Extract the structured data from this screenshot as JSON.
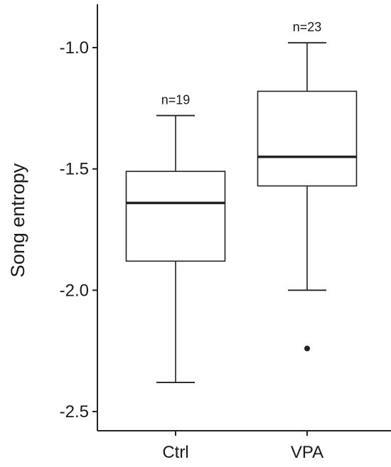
{
  "chart_data": {
    "type": "boxplot",
    "title": "",
    "xlabel": "",
    "ylabel": "Song entropy",
    "ylim": [
      -2.6,
      -0.82
    ],
    "yticks": [
      -1.0,
      -1.5,
      -2.0,
      -2.5
    ],
    "ytick_labels": [
      "-1.0",
      "-1.5",
      "-2.0",
      "-2.5"
    ],
    "categories": [
      "Ctrl",
      "VPA"
    ],
    "grid": false,
    "legend": "none",
    "boxes": [
      {
        "category": "Ctrl",
        "n_label": "n=19",
        "whisker_low": -2.38,
        "q1": -1.88,
        "median": -1.64,
        "q3": -1.51,
        "whisker_high": -1.28,
        "outliers": []
      },
      {
        "category": "VPA",
        "n_label": "n=23",
        "whisker_low": -2.0,
        "q1": -1.57,
        "median": -1.45,
        "q3": -1.18,
        "whisker_high": -0.98,
        "outliers": [
          -2.24
        ]
      }
    ],
    "colors": {
      "stroke": "#222222",
      "outlier": "#222222"
    }
  }
}
